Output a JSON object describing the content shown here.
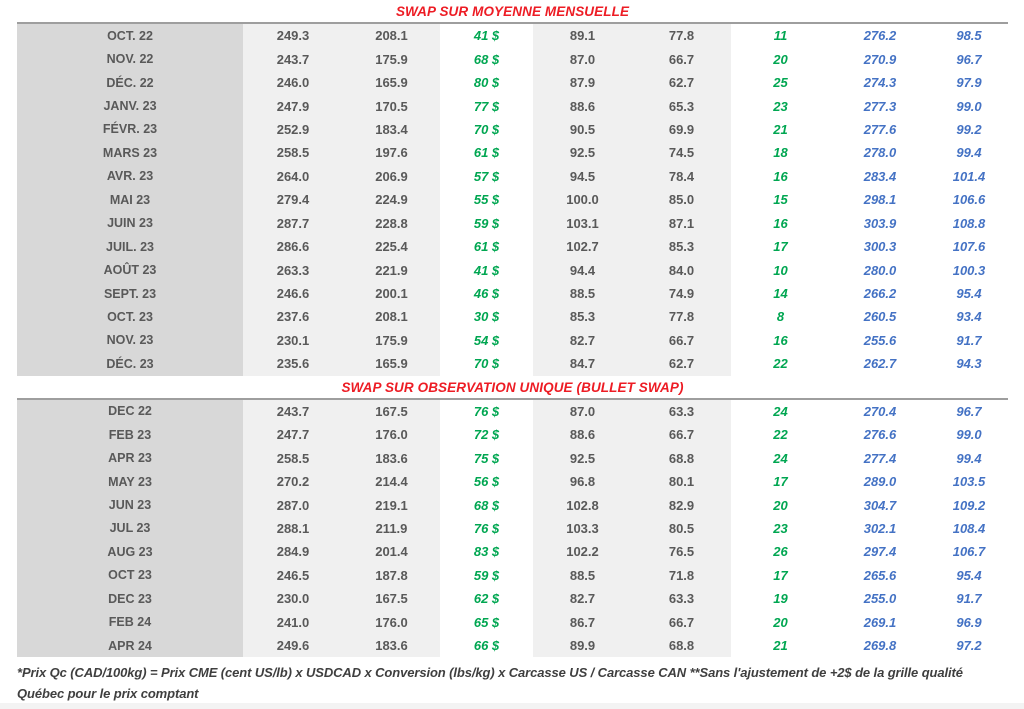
{
  "colors": {
    "red": "#ED1C24",
    "green": "#00A651",
    "blue": "#4472C4",
    "gray-text": "#595959",
    "month-bg": "#d8d8d8",
    "band-bg": "#f0f0f0"
  },
  "sections": [
    {
      "title": "SWAP SUR MOYENNE MENSUELLE",
      "rows": [
        [
          "OCT. 22",
          "249.3",
          "208.1",
          "41 $",
          "89.1",
          "77.8",
          "11",
          "276.2",
          "98.5"
        ],
        [
          "NOV. 22",
          "243.7",
          "175.9",
          "68 $",
          "87.0",
          "66.7",
          "20",
          "270.9",
          "96.7"
        ],
        [
          "DÉC. 22",
          "246.0",
          "165.9",
          "80 $",
          "87.9",
          "62.7",
          "25",
          "274.3",
          "97.9"
        ],
        [
          "JANV. 23",
          "247.9",
          "170.5",
          "77 $",
          "88.6",
          "65.3",
          "23",
          "277.3",
          "99.0"
        ],
        [
          "FÉVR. 23",
          "252.9",
          "183.4",
          "70 $",
          "90.5",
          "69.9",
          "21",
          "277.6",
          "99.2"
        ],
        [
          "MARS 23",
          "258.5",
          "197.6",
          "61 $",
          "92.5",
          "74.5",
          "18",
          "278.0",
          "99.4"
        ],
        [
          "AVR. 23",
          "264.0",
          "206.9",
          "57 $",
          "94.5",
          "78.4",
          "16",
          "283.4",
          "101.4"
        ],
        [
          "MAI 23",
          "279.4",
          "224.9",
          "55 $",
          "100.0",
          "85.0",
          "15",
          "298.1",
          "106.6"
        ],
        [
          "JUIN 23",
          "287.7",
          "228.8",
          "59 $",
          "103.1",
          "87.1",
          "16",
          "303.9",
          "108.8"
        ],
        [
          "JUIL. 23",
          "286.6",
          "225.4",
          "61 $",
          "102.7",
          "85.3",
          "17",
          "300.3",
          "107.6"
        ],
        [
          "AOÛT 23",
          "263.3",
          "221.9",
          "41 $",
          "94.4",
          "84.0",
          "10",
          "280.0",
          "100.3"
        ],
        [
          "SEPT. 23",
          "246.6",
          "200.1",
          "46 $",
          "88.5",
          "74.9",
          "14",
          "266.2",
          "95.4"
        ],
        [
          "OCT. 23",
          "237.6",
          "208.1",
          "30 $",
          "85.3",
          "77.8",
          "8",
          "260.5",
          "93.4"
        ],
        [
          "NOV. 23",
          "230.1",
          "175.9",
          "54 $",
          "82.7",
          "66.7",
          "16",
          "255.6",
          "91.7"
        ],
        [
          "DÉC. 23",
          "235.6",
          "165.9",
          "70 $",
          "84.7",
          "62.7",
          "22",
          "262.7",
          "94.3"
        ]
      ]
    },
    {
      "title": "SWAP SUR OBSERVATION UNIQUE (BULLET SWAP)",
      "rows": [
        [
          "DEC 22",
          "243.7",
          "167.5",
          "76 $",
          "87.0",
          "63.3",
          "24",
          "270.4",
          "96.7"
        ],
        [
          "FEB 23",
          "247.7",
          "176.0",
          "72 $",
          "88.6",
          "66.7",
          "22",
          "276.6",
          "99.0"
        ],
        [
          "APR 23",
          "258.5",
          "183.6",
          "75 $",
          "92.5",
          "68.8",
          "24",
          "277.4",
          "99.4"
        ],
        [
          "MAY 23",
          "270.2",
          "214.4",
          "56 $",
          "96.8",
          "80.1",
          "17",
          "289.0",
          "103.5"
        ],
        [
          "JUN 23",
          "287.0",
          "219.1",
          "68 $",
          "102.8",
          "82.9",
          "20",
          "304.7",
          "109.2"
        ],
        [
          "JUL 23",
          "288.1",
          "211.9",
          "76 $",
          "103.3",
          "80.5",
          "23",
          "302.1",
          "108.4"
        ],
        [
          "AUG 23",
          "284.9",
          "201.4",
          "83 $",
          "102.2",
          "76.5",
          "26",
          "297.4",
          "106.7"
        ],
        [
          "OCT 23",
          "246.5",
          "187.8",
          "59 $",
          "88.5",
          "71.8",
          "17",
          "265.6",
          "95.4"
        ],
        [
          "DEC 23",
          "230.0",
          "167.5",
          "62 $",
          "82.7",
          "63.3",
          "19",
          "255.0",
          "91.7"
        ],
        [
          "FEB 24",
          "241.0",
          "176.0",
          "65 $",
          "86.7",
          "66.7",
          "20",
          "269.1",
          "96.9"
        ],
        [
          "APR 24",
          "249.6",
          "183.6",
          "66 $",
          "89.9",
          "68.8",
          "21",
          "269.8",
          "97.2"
        ]
      ]
    }
  ],
  "footnote": "*Prix Qc (CAD/100kg) = Prix CME (cent US/lb) x USDCAD x Conversion (lbs/kg) x Carcasse US / Carcasse CAN **Sans l'ajustement de +2$ de la grille qualité Québec pour le prix comptant"
}
